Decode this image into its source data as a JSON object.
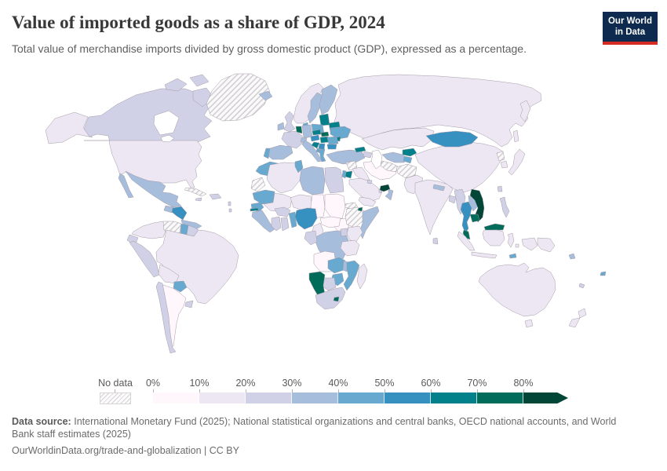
{
  "header": {
    "title": "Value of imported goods as a share of GDP, 2024",
    "subtitle": "Total value of merchandise imports divided by gross domestic product (GDP), expressed as a percentage."
  },
  "logo": {
    "line1": "Our World",
    "line2": "in Data"
  },
  "legend": {
    "no_data_label": "No data",
    "ticks": [
      "0%",
      "10%",
      "20%",
      "30%",
      "40%",
      "50%",
      "60%",
      "70%",
      "80%"
    ],
    "palette": [
      "#fff7fb",
      "#ece7f2",
      "#d0d1e6",
      "#a6bddb",
      "#67a9cf",
      "#3690c0",
      "#02818a",
      "#016c59",
      "#014636"
    ],
    "border_color": "#a59aa8"
  },
  "footer": {
    "source_label": "Data source:",
    "source_line1": "International Monetary Fund (2025); National statistical organizations and central banks, OECD national accounts, and World",
    "source_line2": "Bank staff estimates (2025)",
    "attribution": "OurWorldinData.org/trade-and-globalization | CC BY"
  },
  "chart_data": {
    "type": "choropleth",
    "title": "Value of imported goods as a share of GDP, 2024",
    "unit": "% of GDP",
    "bin_edges_percent": [
      0,
      10,
      20,
      30,
      40,
      50,
      60,
      70,
      80
    ],
    "bin_labels": [
      "0-10%",
      "10-20%",
      "20-30%",
      "30-40%",
      "40-50%",
      "50-60%",
      "60-70%",
      "70-80%",
      "80%+"
    ],
    "legend_position": "bottom",
    "no_data_key": "no_data",
    "regions": {
      "united-states": 1,
      "canada": 2,
      "greenland": "no_data",
      "mexico": 3,
      "guatemala": 3,
      "honduras-nicaragua": 5,
      "costa-rica-panama": 3,
      "cuba": "no_data",
      "hispaniola": 2,
      "jamaica": 2,
      "lesser-antilles": 2,
      "colombia": 1,
      "venezuela": "no_data",
      "guyana": 4,
      "suriname": 2,
      "ecuador": 2,
      "peru": 2,
      "brazil": 1,
      "bolivia": 1,
      "paraguay": 4,
      "uruguay": 2,
      "argentina": 0,
      "chile": 2,
      "iceland": 3,
      "united-kingdom": 2,
      "ireland": 3,
      "norway": 1,
      "sweden": 3,
      "finland": 3,
      "denmark": 4,
      "baltic-states": 6,
      "belarus": 6,
      "poland": 4,
      "germany": 3,
      "belgium-netherlands": 7,
      "france": 2,
      "spain": 3,
      "portugal": 4,
      "italy": 3,
      "switzerland": 3,
      "austria": 5,
      "czechia": 6,
      "slovakia": 7,
      "hungary": 6,
      "croatia-slovenia": 6,
      "serbia-bosnia": 5,
      "romania": 4,
      "bulgaria": 5,
      "greece": 4,
      "albania-north-macedonia": 4,
      "ukraine": 4,
      "moldova": 6,
      "russia": 1,
      "turkey": 3,
      "georgia": 6,
      "azerbaijan-armenia": 2,
      "syria": "no_data",
      "iraq": 1,
      "iran": 0,
      "jordan": 6,
      "israel": 4,
      "saudi-arabia": 1,
      "kuwait": 2,
      "qatar": 2,
      "united-arab-emirates": 8,
      "oman": 3,
      "yemen": 1,
      "morocco": 4,
      "western-sahara": "no_data",
      "algeria": 1,
      "tunisia": 4,
      "libya": 3,
      "egypt": 2,
      "mauritania": 4,
      "mali": 1,
      "niger": 1,
      "chad": 0,
      "sudan": 0,
      "south-sudan": 0,
      "eritrea": "no_data",
      "ethiopia": "no_data",
      "djibouti": 7,
      "somalia": 3,
      "senegal": 4,
      "gambia": 6,
      "guinea-sierra-leone-liberia": 3,
      "ivory-coast": 2,
      "ghana": 2,
      "burkina-faso": 2,
      "togo-benin": 4,
      "nigeria": 5,
      "cameroon": 1,
      "central-african-republic": 0,
      "dr-congo": 3,
      "congo-gabon": 2,
      "uganda": 2,
      "kenya": 1,
      "tanzania": 1,
      "angola": 0,
      "zambia": 4,
      "malawi": 3,
      "mozambique": 4,
      "zimbabwe": 4,
      "botswana": 2,
      "namibia": 7,
      "south-africa": 2,
      "lesotho": 7,
      "madagascar": 1,
      "kazakhstan": 1,
      "uzbekistan": 3,
      "turkmenistan": "no_data",
      "kyrgyzstan": 6,
      "tajikistan": 4,
      "afghanistan": "no_data",
      "pakistan": 1,
      "india": 1,
      "nepal": 3,
      "bangladesh": 2,
      "sri-lanka": 2,
      "china": 1,
      "mongolia": 5,
      "north-korea": "no_data",
      "south-korea": 1,
      "japan": 1,
      "taiwan": 2,
      "myanmar": 2,
      "thailand": 5,
      "laos": 3,
      "vietnam": 8,
      "cambodia": 7,
      "malaysia": 7,
      "indonesia": 1,
      "philippines": 2,
      "papua-new-guinea": 1,
      "australia": 1,
      "new-zealand": 1,
      "fiji": 4,
      "solomon-islands": 3,
      "timor-leste": 4,
      "new-caledonia": 2
    }
  }
}
